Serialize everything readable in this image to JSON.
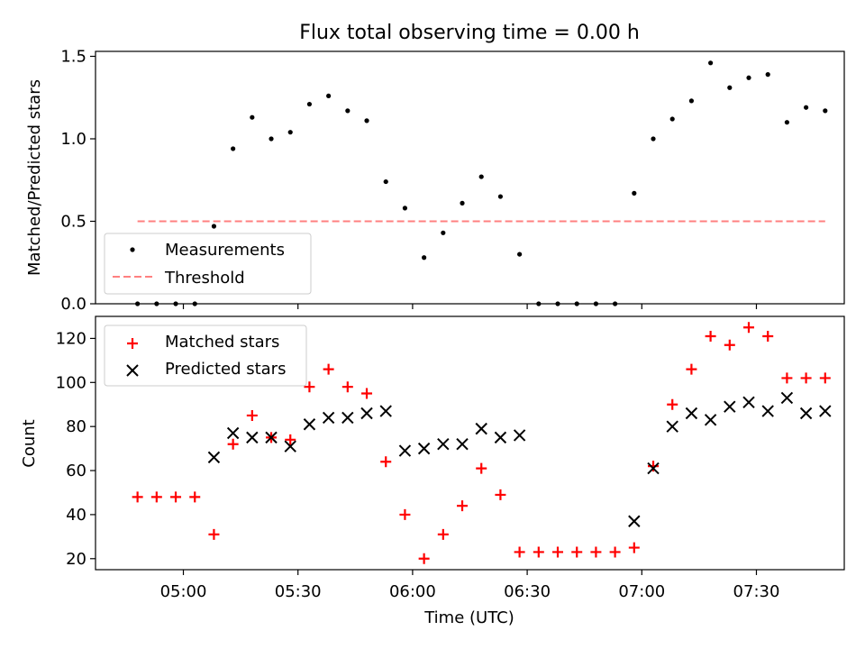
{
  "title": "Flux total observing time = 0.00 h",
  "colors": {
    "measurements": "#000000",
    "threshold": "#ff8080",
    "matched": "#ff0000",
    "predicted": "#000000"
  },
  "chart_data": [
    {
      "type": "scatter",
      "ylabel": "Matched/Predicted stars",
      "ylim": [
        0,
        1.53
      ],
      "yticks": [
        "0.0",
        "0.5",
        "1.0",
        "1.5"
      ],
      "x_ticks_unlabeled": [
        "05:00",
        "05:30",
        "06:00",
        "06:30",
        "07:00",
        "07:30"
      ],
      "legend_position": "lower-left",
      "series": [
        {
          "name": "Measurements",
          "marker": "dot",
          "x": [
            "04:48",
            "04:53",
            "04:58",
            "05:03",
            "05:08",
            "05:13",
            "05:18",
            "05:23",
            "05:28",
            "05:33",
            "05:38",
            "05:43",
            "05:48",
            "05:53",
            "05:58",
            "06:03",
            "06:08",
            "06:13",
            "06:18",
            "06:23",
            "06:28",
            "06:33",
            "06:38",
            "06:43",
            "06:48",
            "06:53",
            "06:58",
            "07:03",
            "07:08",
            "07:13",
            "07:18",
            "07:23",
            "07:28",
            "07:33",
            "07:38",
            "07:43",
            "07:48"
          ],
          "y": [
            0.0,
            0.0,
            0.0,
            0.0,
            0.47,
            0.94,
            1.13,
            1.0,
            1.04,
            1.21,
            1.26,
            1.17,
            1.11,
            0.74,
            0.58,
            0.28,
            0.43,
            0.61,
            0.77,
            0.65,
            0.3,
            0.0,
            0.0,
            0.0,
            0.0,
            0.0,
            0.67,
            1.0,
            1.12,
            1.23,
            1.46,
            1.31,
            1.37,
            1.39,
            1.1,
            1.19,
            1.17
          ]
        },
        {
          "name": "Threshold",
          "style": "dashed",
          "x": [
            "04:48",
            "07:48"
          ],
          "y": [
            0.5,
            0.5
          ]
        }
      ]
    },
    {
      "type": "scatter",
      "xlabel": "Time (UTC)",
      "ylabel": "Count",
      "ylim": [
        15,
        130
      ],
      "yticks": [
        "20",
        "40",
        "60",
        "80",
        "100",
        "120"
      ],
      "xticks": [
        "05:00",
        "05:30",
        "06:00",
        "06:30",
        "07:00",
        "07:30"
      ],
      "legend_position": "upper-left",
      "series": [
        {
          "name": "Matched stars",
          "marker": "plus",
          "x": [
            "04:48",
            "04:53",
            "04:58",
            "05:03",
            "05:08",
            "05:13",
            "05:18",
            "05:23",
            "05:28",
            "05:33",
            "05:38",
            "05:43",
            "05:48",
            "05:53",
            "05:58",
            "06:03",
            "06:08",
            "06:13",
            "06:18",
            "06:23",
            "06:28",
            "06:33",
            "06:38",
            "06:43",
            "06:48",
            "06:53",
            "06:58",
            "07:03",
            "07:08",
            "07:13",
            "07:18",
            "07:23",
            "07:28",
            "07:33",
            "07:38",
            "07:43",
            "07:48"
          ],
          "y": [
            48,
            48,
            48,
            48,
            31,
            72,
            85,
            75,
            74,
            98,
            106,
            98,
            95,
            64,
            40,
            20,
            31,
            44,
            61,
            49,
            23,
            23,
            23,
            23,
            23,
            23,
            25,
            62,
            90,
            106,
            121,
            117,
            125,
            121,
            102,
            102,
            102
          ]
        },
        {
          "name": "Predicted stars",
          "marker": "x",
          "x": [
            "05:08",
            "05:13",
            "05:18",
            "05:23",
            "05:28",
            "05:33",
            "05:38",
            "05:43",
            "05:48",
            "05:53",
            "05:58",
            "06:03",
            "06:08",
            "06:13",
            "06:18",
            "06:23",
            "06:28",
            "06:58",
            "07:03",
            "07:08",
            "07:13",
            "07:18",
            "07:23",
            "07:28",
            "07:33",
            "07:38",
            "07:43",
            "07:48"
          ],
          "y": [
            66,
            77,
            75,
            75,
            71,
            81,
            84,
            84,
            86,
            87,
            69,
            70,
            72,
            72,
            79,
            75,
            76,
            37,
            61,
            80,
            86,
            83,
            89,
            91,
            87,
            93,
            86,
            87
          ]
        }
      ]
    }
  ]
}
